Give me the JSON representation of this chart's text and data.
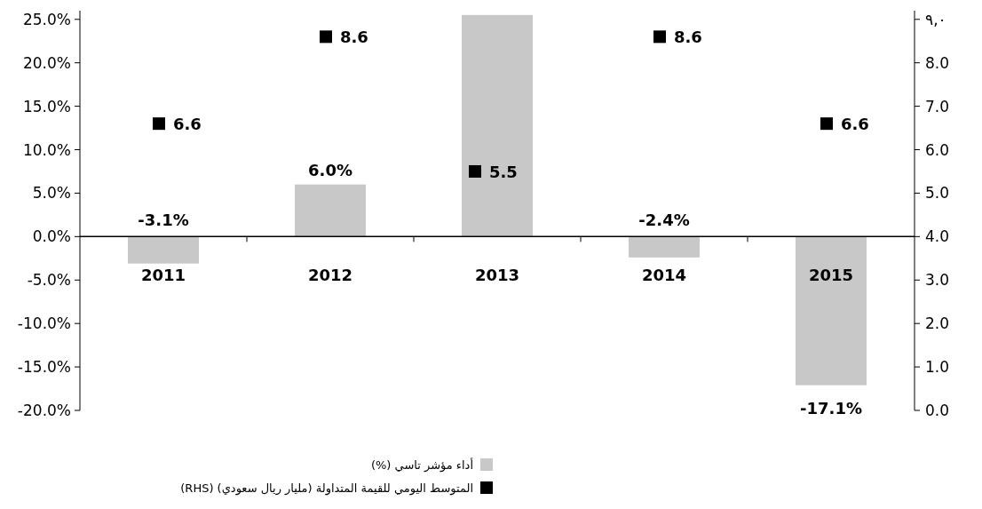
{
  "chart_data": {
    "type": "bar",
    "categories": [
      "2011",
      "2012",
      "2013",
      "2014",
      "2015"
    ],
    "series": [
      {
        "name": "أداء مؤشر تاسي (%)",
        "color": "#c8c8c8",
        "values": [
          -3.1,
          6.0,
          25.5,
          -2.4,
          -17.1
        ],
        "value_labels": [
          "-3.1%",
          "6.0%",
          null,
          "-2.4%",
          "-17.1%"
        ]
      },
      {
        "name": "المتوسط اليومي للقيمة المتداولة (مليار ريال سعودي) (RHS)",
        "type": "scatter",
        "axis": "y2",
        "marker": "square",
        "color": "#000000",
        "values": [
          6.6,
          8.6,
          5.5,
          8.6,
          6.6
        ],
        "value_labels": [
          "6.6",
          "8.6",
          "5.5",
          "8.6",
          "6.6"
        ]
      }
    ],
    "ylim": [
      -20,
      26
    ],
    "yticks": [
      {
        "value": 25,
        "label": "25.0%"
      },
      {
        "value": 20,
        "label": "20.0%"
      },
      {
        "value": 15,
        "label": "15.0%"
      },
      {
        "value": 10,
        "label": "10.0%"
      },
      {
        "value": 5,
        "label": "5.0%"
      },
      {
        "value": 0,
        "label": "0.0%"
      },
      {
        "value": -5,
        "label": "-5.0%"
      },
      {
        "value": -10,
        "label": "-10.0%"
      },
      {
        "value": -15,
        "label": "-15.0%"
      },
      {
        "value": -20,
        "label": "-20.0%"
      }
    ],
    "y2lim": [
      0,
      9.2
    ],
    "y2ticks": [
      {
        "value": 0,
        "label": "0.0"
      },
      {
        "value": 1,
        "label": "1.0"
      },
      {
        "value": 2,
        "label": "2.0"
      },
      {
        "value": 3,
        "label": "3.0"
      },
      {
        "value": 4,
        "label": "4.0"
      },
      {
        "value": 5,
        "label": "5.0"
      },
      {
        "value": 6,
        "label": "6.0"
      },
      {
        "value": 7,
        "label": "7.0"
      },
      {
        "value": 8,
        "label": "8.0"
      },
      {
        "value": 9,
        "label": "٩,٠"
      }
    ],
    "legend": "bottom"
  }
}
